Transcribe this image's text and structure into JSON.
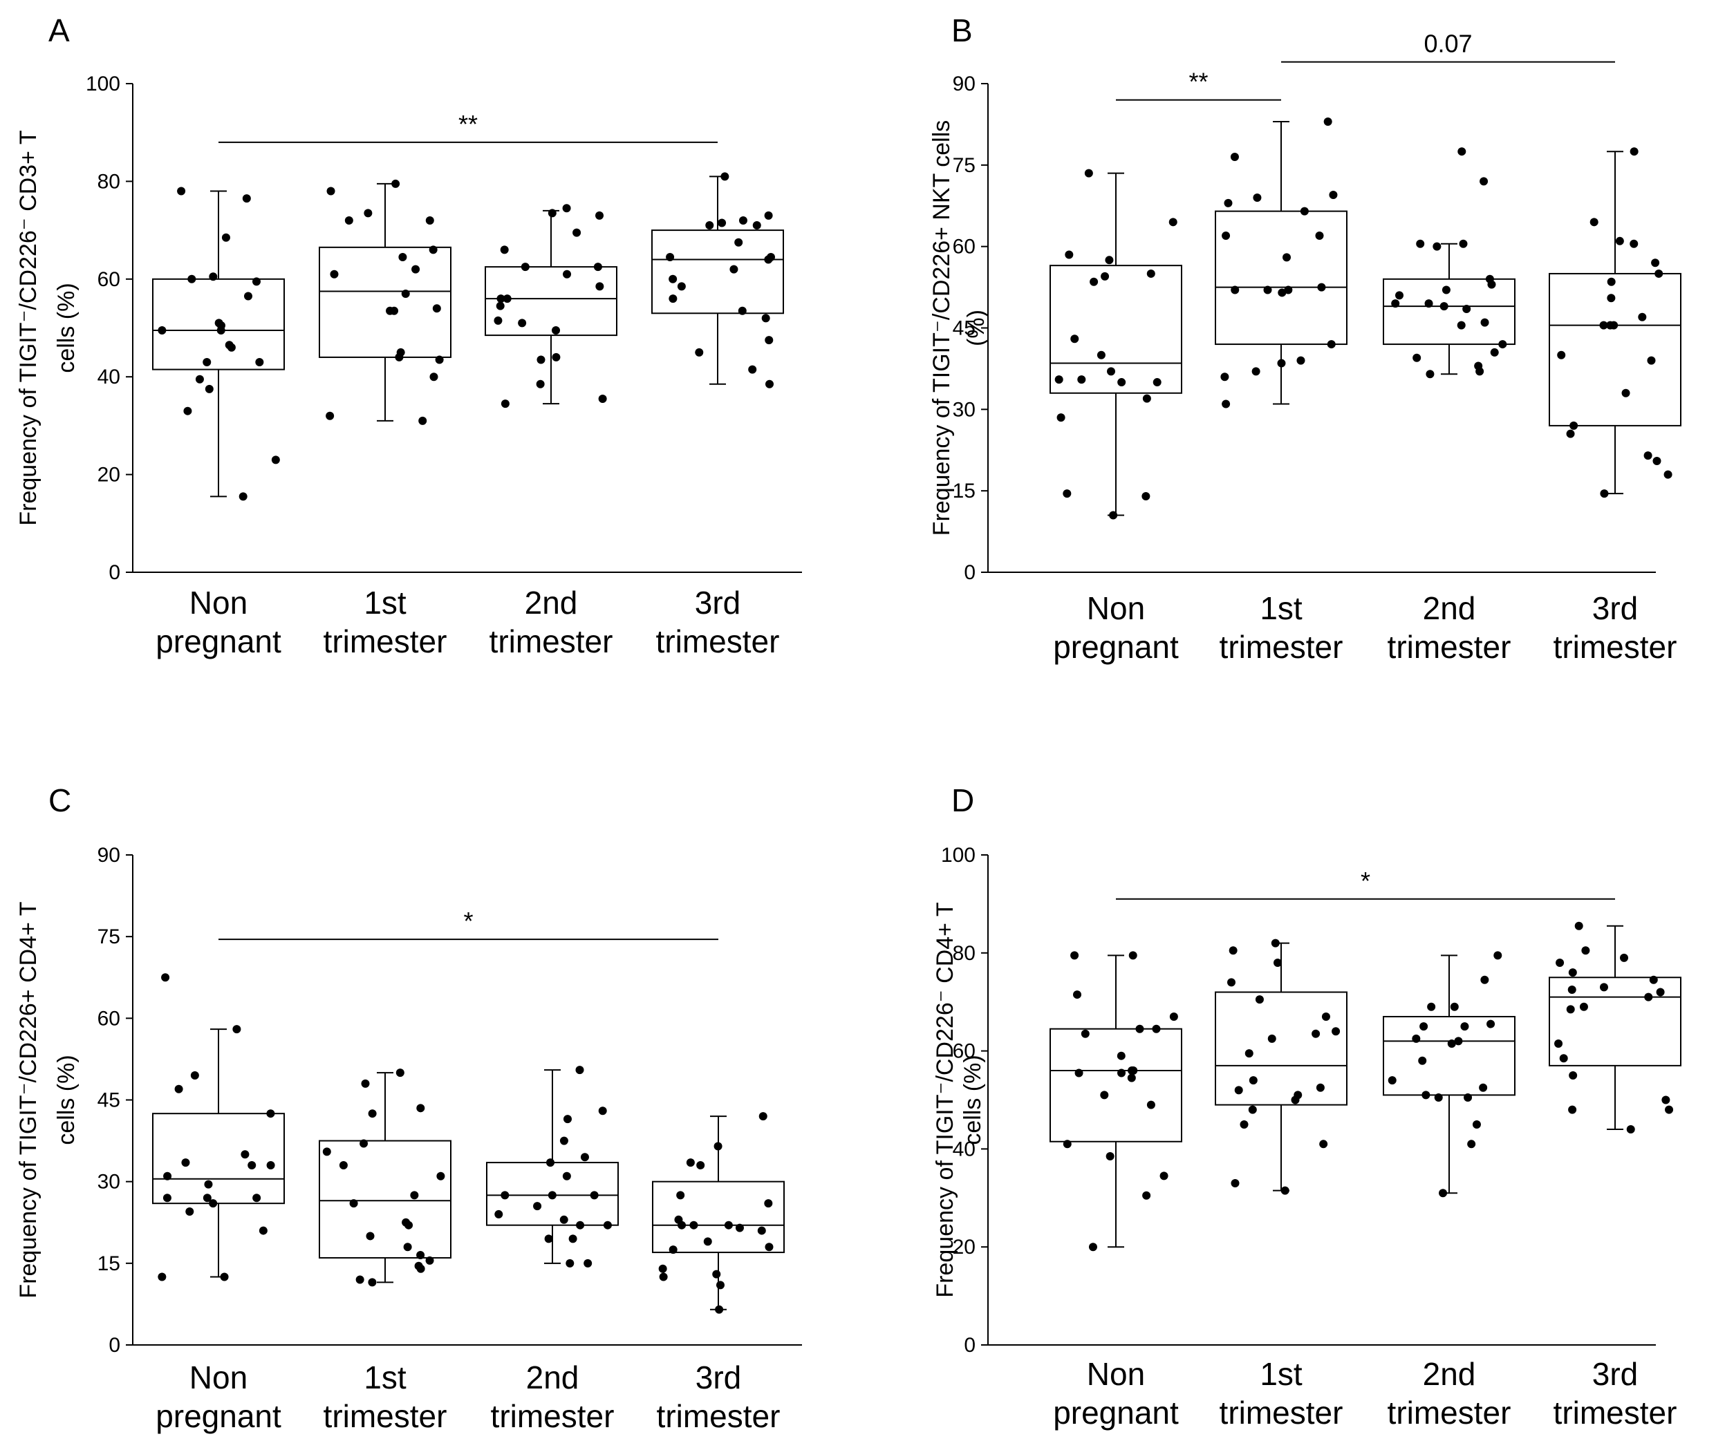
{
  "chart_data": [
    {
      "type": "box",
      "panel": "A",
      "categories": [
        [
          "Non",
          "pregnant"
        ],
        [
          "1st",
          "trimester"
        ],
        [
          "2nd",
          "trimester"
        ],
        [
          "3rd",
          "trimester"
        ]
      ],
      "ylabel": [
        "Frequency of TIGIT⁻/CD226⁻ CD3+ T",
        "cells (%)"
      ],
      "ylim": [
        0,
        100
      ],
      "yticks": [
        0,
        20,
        40,
        60,
        80,
        100
      ],
      "boxes": [
        {
          "min": 15.5,
          "q1": 41.5,
          "median": 49.5,
          "q3": 60,
          "max": 78
        },
        {
          "min": 31,
          "q1": 44,
          "median": 57.5,
          "q3": 66.5,
          "max": 79.5
        },
        {
          "min": 34.5,
          "q1": 48.5,
          "median": 56,
          "q3": 62.5,
          "max": 74
        },
        {
          "min": 38.5,
          "q1": 53,
          "median": 64,
          "q3": 70,
          "max": 81
        }
      ],
      "points": [
        [
          78,
          76.5,
          68.5,
          60.5,
          60,
          59.5,
          56.5,
          51,
          50.5,
          49.5,
          49.5,
          46.5,
          46,
          43,
          43,
          39.5,
          37.5,
          33,
          23,
          15.5
        ],
        [
          79.5,
          78,
          73.5,
          72,
          72,
          66,
          64.5,
          62,
          61,
          57,
          54,
          53.5,
          53.5,
          45,
          44,
          43.5,
          40,
          32,
          31
        ],
        [
          74.5,
          73.5,
          73,
          69.5,
          66,
          62.5,
          62.5,
          61,
          58.5,
          56,
          56,
          54.5,
          51.5,
          51,
          49.5,
          44,
          43.5,
          38.5,
          35.5,
          34.5
        ],
        [
          81,
          73,
          72,
          71.5,
          71,
          71,
          67.5,
          64.5,
          64.5,
          64,
          62,
          60,
          58.5,
          56,
          53.5,
          52,
          47.5,
          45,
          41.5,
          38.5
        ]
      ],
      "significance": [
        {
          "from": 0,
          "to": 3,
          "y": 88,
          "label": "**"
        }
      ]
    },
    {
      "type": "box",
      "panel": "B",
      "categories": [
        [
          "Non",
          "pregnant"
        ],
        [
          "1st",
          "trimester"
        ],
        [
          "2nd",
          "trimester"
        ],
        [
          "3rd",
          "trimester"
        ]
      ],
      "ylabel": [
        "Frequency of TIGIT⁻/CD226+ NKT cells",
        "(%)"
      ],
      "ylim": [
        0,
        90
      ],
      "yticks": [
        0,
        15,
        30,
        45,
        60,
        75,
        90
      ],
      "boxes": [
        {
          "min": 10.5,
          "q1": 33,
          "median": 38.5,
          "q3": 56.5,
          "max": 73.5
        },
        {
          "min": 31,
          "q1": 42,
          "median": 52.5,
          "q3": 66.5,
          "max": 83
        },
        {
          "min": 36.5,
          "q1": 42,
          "median": 49,
          "q3": 54,
          "max": 60.5
        },
        {
          "min": 14.5,
          "q1": 27,
          "median": 45.5,
          "q3": 55,
          "max": 77.5
        }
      ],
      "points": [
        [
          73.5,
          64.5,
          58.5,
          57.5,
          55,
          54.5,
          53.5,
          43,
          40,
          37,
          35.5,
          35.5,
          35,
          35,
          32,
          28.5,
          14.5,
          14,
          10.5
        ],
        [
          83,
          76.5,
          69.5,
          69,
          68,
          66.5,
          62,
          62,
          58,
          52.5,
          52,
          52,
          52,
          51.5,
          42,
          39,
          38.5,
          37,
          36,
          31
        ],
        [
          77.5,
          72,
          60.5,
          60,
          60.5,
          54,
          53,
          52,
          51,
          49.5,
          49.5,
          49,
          48.5,
          46,
          45.5,
          42,
          40.5,
          39.5,
          38,
          37,
          36.5
        ],
        [
          77.5,
          64.5,
          61,
          60.5,
          57,
          55,
          53.5,
          50.5,
          47,
          45.5,
          45.5,
          45.5,
          40,
          39,
          33,
          27,
          25.5,
          21.5,
          20.5,
          18,
          14.5
        ]
      ],
      "significance": [
        {
          "from": 0,
          "to": 1,
          "y": 87,
          "label": "**"
        },
        {
          "from": 1,
          "to": 3,
          "y": 94,
          "label": "0.07"
        }
      ]
    },
    {
      "type": "box",
      "panel": "C",
      "categories": [
        [
          "Non",
          "pregnant"
        ],
        [
          "1st",
          "trimester"
        ],
        [
          "2nd",
          "trimester"
        ],
        [
          "3rd",
          "trimester"
        ]
      ],
      "ylabel": [
        "Frequency of TIGIT⁻/CD226+ CD4+ T",
        "cells (%)"
      ],
      "ylim": [
        0,
        90
      ],
      "yticks": [
        0,
        15,
        30,
        45,
        60,
        75,
        90
      ],
      "boxes": [
        {
          "min": 12.5,
          "q1": 26,
          "median": 30.5,
          "q3": 42.5,
          "max": 58
        },
        {
          "min": 11.5,
          "q1": 16,
          "median": 26.5,
          "q3": 37.5,
          "max": 50
        },
        {
          "min": 15,
          "q1": 22,
          "median": 27.5,
          "q3": 33.5,
          "max": 50.5
        },
        {
          "min": 6.5,
          "q1": 17,
          "median": 22,
          "q3": 30,
          "max": 42
        }
      ],
      "points": [
        [
          67.5,
          58,
          49.5,
          47,
          42.5,
          35,
          33.5,
          33,
          33,
          31,
          29.5,
          27,
          27,
          27,
          26,
          24.5,
          21,
          12.5,
          12.5
        ],
        [
          50,
          48,
          43.5,
          42.5,
          37,
          35.5,
          33,
          31,
          27.5,
          26,
          22.5,
          22,
          20,
          18,
          16.5,
          15.5,
          14.5,
          14,
          12,
          11.5
        ],
        [
          50.5,
          43,
          41.5,
          37.5,
          34.5,
          33.5,
          31,
          27.5,
          27.5,
          27.5,
          25.5,
          24,
          23,
          22,
          22,
          19.5,
          19.5,
          15,
          15
        ],
        [
          42,
          36.5,
          33.5,
          33,
          27.5,
          26,
          23,
          22,
          22,
          22,
          21.5,
          21,
          19,
          18,
          17.5,
          14,
          13,
          12.5,
          11,
          6.5
        ]
      ],
      "significance": [
        {
          "from": 0,
          "to": 3,
          "y": 74.5,
          "label": "*"
        }
      ]
    },
    {
      "type": "box",
      "panel": "D",
      "categories": [
        [
          "Non",
          "pregnant"
        ],
        [
          "1st",
          "trimester"
        ],
        [
          "2nd",
          "trimester"
        ],
        [
          "3rd",
          "trimester"
        ]
      ],
      "ylabel": [
        "Frequency of TIGIT⁻/CD226⁻ CD4+ T",
        "cells (%)"
      ],
      "ylim": [
        0,
        100
      ],
      "yticks": [
        0,
        20,
        40,
        60,
        80,
        100
      ],
      "boxes": [
        {
          "min": 20,
          "q1": 41.5,
          "median": 56,
          "q3": 64.5,
          "max": 79.5
        },
        {
          "min": 31.5,
          "q1": 49,
          "median": 57,
          "q3": 72,
          "max": 82
        },
        {
          "min": 31,
          "q1": 51,
          "median": 62,
          "q3": 67,
          "max": 79.5
        },
        {
          "min": 44,
          "q1": 57,
          "median": 71,
          "q3": 75,
          "max": 85.5
        }
      ],
      "points": [
        [
          79.5,
          79.5,
          71.5,
          67,
          64.5,
          64.5,
          63.5,
          59,
          56,
          56,
          55.5,
          55.5,
          54.5,
          51,
          49,
          41,
          38.5,
          34.5,
          30.5,
          20
        ],
        [
          82,
          80.5,
          78,
          74,
          70.5,
          67,
          64,
          63.5,
          62.5,
          59.5,
          54,
          52.5,
          52,
          51,
          50,
          48,
          45,
          41,
          33,
          31.5
        ],
        [
          79.5,
          74.5,
          69,
          69,
          65.5,
          65,
          65,
          62.5,
          62,
          61.5,
          58,
          54,
          52.5,
          51,
          50.5,
          50.5,
          45,
          41,
          31
        ],
        [
          85.5,
          80.5,
          79,
          78,
          76,
          74.5,
          73,
          72.5,
          72,
          71,
          69,
          68.5,
          61.5,
          58.5,
          55,
          50,
          48,
          48,
          44
        ]
      ],
      "significance": [
        {
          "from": 0,
          "to": 3,
          "y": 91,
          "label": "*"
        }
      ]
    }
  ],
  "panels": [
    {
      "letter": "A"
    },
    {
      "letter": "B"
    },
    {
      "letter": "C"
    },
    {
      "letter": "D"
    }
  ]
}
